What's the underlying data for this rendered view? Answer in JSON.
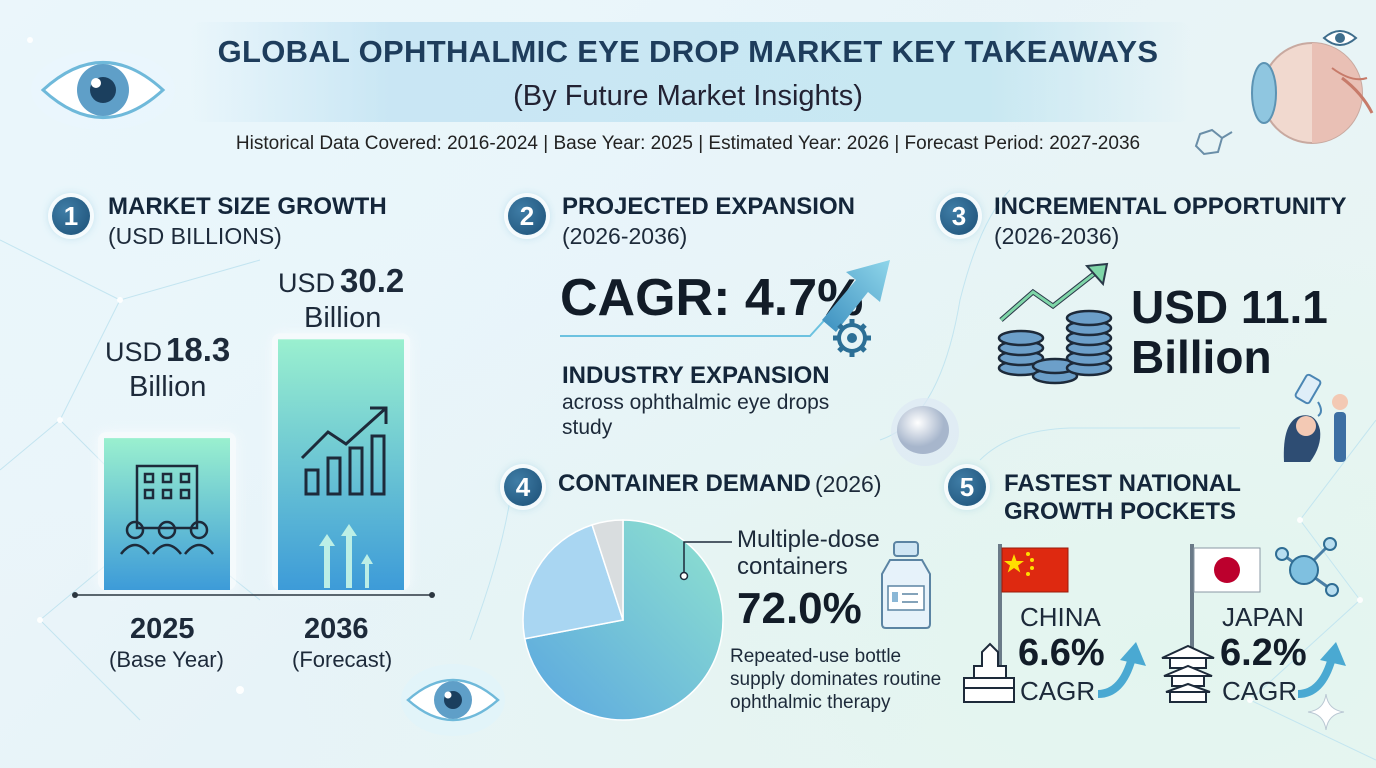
{
  "header": {
    "title": "GLOBAL OPHTHALMIC EYE DROP MARKET KEY TAKEAWAYS",
    "subtitle": "(By Future Market Insights)",
    "meta": "Historical Data Covered: 2016-2024 | Base Year: 2025 | Estimated Year: 2026 | Forecast Period: 2027-2036"
  },
  "sections": {
    "s1": {
      "num": "1",
      "title": "MARKET SIZE GROWTH",
      "sub": "(USD BILLIONS)"
    },
    "s2": {
      "num": "2",
      "title": "PROJECTED EXPANSION",
      "sub": "(2026-2036)",
      "cagr": "CAGR: 4.7%",
      "ind_title": "INDUSTRY EXPANSION",
      "ind_line1": "across ophthalmic eye drops",
      "ind_line2": "study"
    },
    "s3": {
      "num": "3",
      "title": "INCREMENTAL OPPORTUNITY",
      "sub": "(2026-2036)",
      "value_line1": "USD 11.1",
      "value_line2": "Billion"
    },
    "s4": {
      "num": "4",
      "title": "CONTAINER DEMAND",
      "title_suffix": "(2026)",
      "label_line1": "Multiple-dose",
      "label_line2": "containers",
      "value": "72.0%",
      "note_line1": "Repeated-use bottle",
      "note_line2": "supply dominates routine",
      "note_line3": "ophthalmic therapy"
    },
    "s5": {
      "num": "5",
      "title_line1": "FASTEST NATIONAL",
      "title_line2": "GROWTH POCKETS",
      "china": {
        "name": "CHINA",
        "value": "6.6%",
        "unit": "CAGR"
      },
      "japan": {
        "name": "JAPAN",
        "value": "6.2%",
        "unit": "CAGR"
      }
    }
  },
  "bars_text": {
    "b1_prefix": "USD",
    "b1_value": "18.3",
    "b1_unit": "Billion",
    "b2_prefix": "USD",
    "b2_value": "30.2",
    "b2_unit": "Billion",
    "x1_year": "2025",
    "x1_note": "(Base Year)",
    "x2_year": "2036",
    "x2_note": "(Forecast)"
  },
  "chart_data": [
    {
      "type": "bar",
      "title": "MARKET SIZE GROWTH (USD BILLIONS)",
      "categories": [
        "2025",
        "2036"
      ],
      "values": [
        18.3,
        30.2
      ]
    },
    {
      "type": "pie",
      "title": "CONTAINER DEMAND (2026)",
      "slices": [
        {
          "label": "Multiple-dose containers",
          "value": 72.0
        },
        {
          "value": 23.0
        },
        {
          "value": 5.0
        }
      ]
    }
  ],
  "colors": {
    "badge": "#1c4f76",
    "bar_top": "#8fe6c8",
    "bar_bottom": "#3f9fd8",
    "pie_main": "#6cb8e6",
    "pie_second": "#a9d6f2",
    "pie_third": "#d9dddf",
    "arrow": "#4aa9d2"
  },
  "icons": [
    "eye-icon",
    "eyeball-anatomy-icon",
    "molecule-icon",
    "building-people-icon",
    "growth-chart-icon",
    "trend-arrow-gear-icon",
    "coins-growth-icon",
    "eye-drop-patient-icon",
    "contact-lens-icon",
    "dropper-bottle-icon",
    "china-flag-icon",
    "japan-flag-icon",
    "landmark-icon",
    "sparkle-icon"
  ]
}
